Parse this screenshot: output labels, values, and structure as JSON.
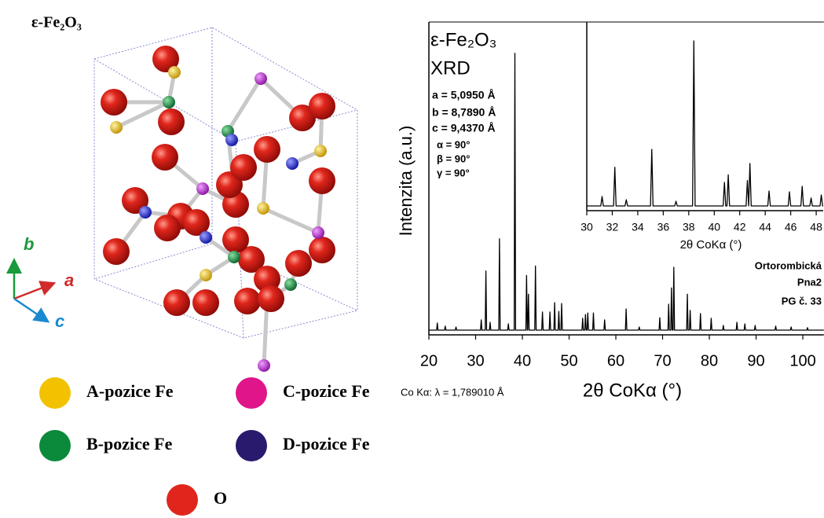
{
  "structure": {
    "title": "ε-Fe₂O₃",
    "axes": [
      "b",
      "a",
      "c"
    ],
    "legend": [
      {
        "label": "A-pozice Fe",
        "color": "#f2c200"
      },
      {
        "label": "C-pozice Fe",
        "color": "#e0158a"
      },
      {
        "label": "B-pozice Fe",
        "color": "#0a8a3a"
      },
      {
        "label": "D-pozice Fe",
        "color": "#2a1a6e"
      },
      {
        "label": "O",
        "color": "#e0261c"
      }
    ]
  },
  "chart_data": [
    {
      "type": "line",
      "xlabel": "2θ CoKα (°)",
      "ylabel": "Intenzita (a.u.)",
      "color": "#000000",
      "xlim": [
        20,
        104.5
      ],
      "ylim": [
        0,
        100
      ],
      "xticks": [
        20,
        30,
        40,
        50,
        60,
        70,
        80,
        90,
        100
      ],
      "annotations": [
        "ε-Fe₂O₃",
        "XRD",
        "a = 5,0950 Å",
        "b = 8,7890 Å",
        "c = 9,4370 Å",
        "α = 90°",
        "β = 90°",
        "γ = 90°",
        "Ortorombická",
        "Pna2",
        "PG č. 33",
        "Co Kα: λ = 1,789010 Å"
      ],
      "x": [
        20,
        21.65,
        21.8,
        21.95,
        23.35,
        23.5,
        23.65,
        25.65,
        25.8,
        25.95,
        31.05,
        31.2,
        31.35,
        32.05,
        32.2,
        32.35,
        32.95,
        33.1,
        33.25,
        34.95,
        35.1,
        35.25,
        36.85,
        37,
        37.15,
        38.25,
        38.4,
        38.55,
        40.75,
        40.9,
        41.05,
        41.15,
        41.3,
        41.45,
        42.65,
        42.8,
        42.95,
        44.15,
        44.3,
        44.45,
        45.75,
        45.9,
        46.05,
        46.75,
        46.9,
        47.05,
        47.65,
        47.8,
        47.95,
        48.25,
        48.4,
        48.55,
        52.75,
        52.9,
        53.05,
        53.35,
        53.5,
        53.65,
        53.85,
        54,
        54.15,
        55.05,
        55.2,
        55.35,
        57.45,
        57.6,
        57.75,
        62.05,
        62.2,
        62.35,
        64.85,
        65,
        65.15,
        69.25,
        69.4,
        69.55,
        71.15,
        71.3,
        71.45,
        71.75,
        71.9,
        72.05,
        72.25,
        72.4,
        72.55,
        75.15,
        75.3,
        75.45,
        75.75,
        75.9,
        76.05,
        77.95,
        78.1,
        78.25,
        80.25,
        80.4,
        80.55,
        82.85,
        83,
        83.15,
        85.75,
        85.9,
        86.05,
        87.45,
        87.6,
        87.75,
        89.65,
        89.8,
        89.95,
        94.05,
        94.2,
        94.35,
        97.35,
        97.5,
        97.65,
        100.85,
        101,
        101.15,
        104.5
      ],
      "values": [
        1.5,
        1.5,
        3.8,
        1.5,
        1.5,
        2.8,
        1.5,
        1.5,
        2.5,
        1.5,
        1.5,
        4.8,
        1.5,
        1.5,
        20.4,
        1.5,
        1.5,
        4,
        1.5,
        1.5,
        30.7,
        1.5,
        1.5,
        3.5,
        1.5,
        1.5,
        90,
        1.5,
        1.5,
        19,
        1.5,
        1.5,
        13,
        1.5,
        1.5,
        22,
        1.5,
        1.5,
        7.3,
        1.5,
        1.5,
        7.3,
        1.5,
        1.5,
        10.3,
        1.5,
        1.5,
        7.5,
        1.5,
        1.5,
        10,
        1.5,
        1.5,
        5.3,
        1.5,
        1.5,
        6.5,
        1.5,
        1.5,
        7,
        1.5,
        1.5,
        7,
        1.5,
        1.5,
        4.8,
        1.5,
        1.5,
        8.3,
        1.5,
        1.5,
        2.5,
        1.5,
        1.5,
        5.5,
        1.5,
        1.5,
        9.8,
        1.5,
        1.5,
        15,
        1.5,
        1.5,
        21.6,
        1.5,
        1.5,
        13,
        1.5,
        1.5,
        7.8,
        1.5,
        1.5,
        6.8,
        1.5,
        1.5,
        5.3,
        1.5,
        1.5,
        3,
        1.5,
        1.5,
        4,
        1.5,
        1.5,
        3.5,
        1.5,
        1.5,
        3,
        1.5,
        1.5,
        2.8,
        1.5,
        1.5,
        2.5,
        1.5,
        1.5,
        2.3,
        1.5,
        1.5
      ]
    },
    {
      "type": "line",
      "xlabel": "2θ CoKα (°)",
      "color": "#000000",
      "xlim": [
        30,
        48.55
      ],
      "ylim": [
        0,
        100
      ],
      "xticks": [
        30,
        32,
        34,
        36,
        38,
        40,
        42,
        44,
        46,
        48
      ],
      "x": [
        30,
        31.1,
        31.2,
        31.3,
        32.1,
        32.2,
        32.3,
        33,
        33.1,
        33.2,
        35,
        35.1,
        35.2,
        36.9,
        37,
        37.1,
        38.3,
        38.4,
        38.5,
        40.7,
        40.8,
        40.9,
        41,
        41.1,
        41.2,
        42.5,
        42.6,
        42.7,
        42.7,
        42.8,
        42.9,
        44.2,
        44.3,
        44.4,
        45.8,
        45.9,
        46,
        46.8,
        46.9,
        47,
        47.5,
        47.6,
        47.7,
        48.3,
        48.4,
        48.5,
        48.55
      ],
      "values": [
        2.5,
        2.5,
        7.5,
        2.5,
        2.5,
        23,
        2.5,
        2.5,
        5.8,
        2.5,
        2.5,
        32.5,
        2.5,
        2.5,
        5,
        2.5,
        2.5,
        90,
        2.5,
        2.5,
        15,
        2.5,
        2.5,
        19,
        2.5,
        2.5,
        16,
        2.5,
        2.5,
        25,
        2.5,
        2.5,
        10.4,
        2.5,
        2.5,
        10,
        2.5,
        2.5,
        12.9,
        2.5,
        2.5,
        6.7,
        2.5,
        2.5,
        8.3,
        2.5,
        2.5
      ]
    }
  ]
}
